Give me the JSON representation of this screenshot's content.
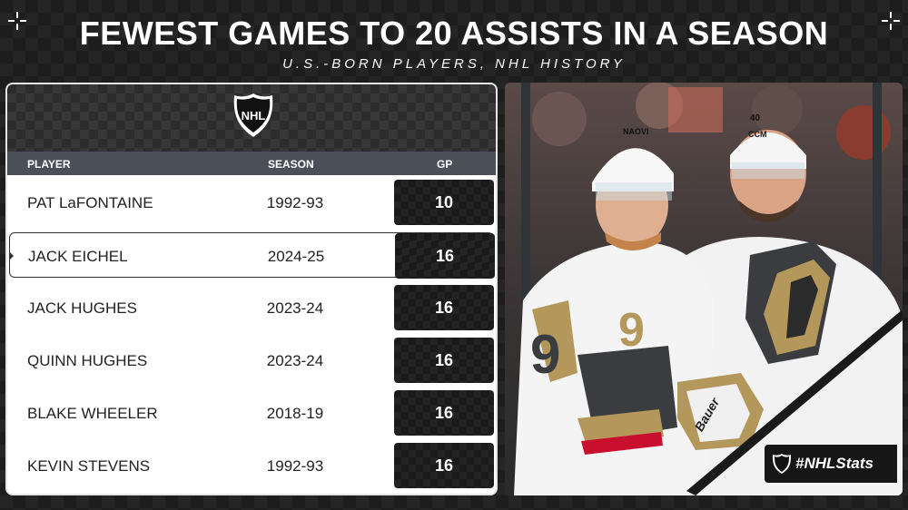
{
  "title": "FEWEST GAMES TO 20 ASSISTS IN A SEASON",
  "subtitle": "U.S.-BORN PLAYERS, NHL HISTORY",
  "logo_text": "NHL",
  "table": {
    "headers": {
      "player": "PLAYER",
      "season": "SEASON",
      "gp": "GP"
    },
    "rows": [
      {
        "player": "PAT LaFONTAINE",
        "season": "1992-93",
        "gp": "10"
      },
      {
        "player": "JACK EICHEL",
        "season": "2024-25",
        "gp": "16"
      },
      {
        "player": "JACK HUGHES",
        "season": "2023-24",
        "gp": "16"
      },
      {
        "player": "QUINN HUGHES",
        "season": "2023-24",
        "gp": "16"
      },
      {
        "player": "BLAKE WHEELER",
        "season": "2018-19",
        "gp": "16"
      },
      {
        "player": "KEVIN STEVENS",
        "season": "1992-93",
        "gp": "16"
      }
    ]
  },
  "photo": {
    "jersey_numbers": {
      "front": "9",
      "back": "40"
    },
    "helmet_brands": {
      "front": "NAOVI",
      "back": "CCM"
    },
    "glove_brand": "Bauer"
  },
  "hashtag": "#NHLStats",
  "colors": {
    "background": "#1d1d1d",
    "header_row": "#4b4f58",
    "gp_box": "#1a1a1a",
    "vegas_gold": "#b4975a",
    "vegas_red": "#c8102e"
  }
}
